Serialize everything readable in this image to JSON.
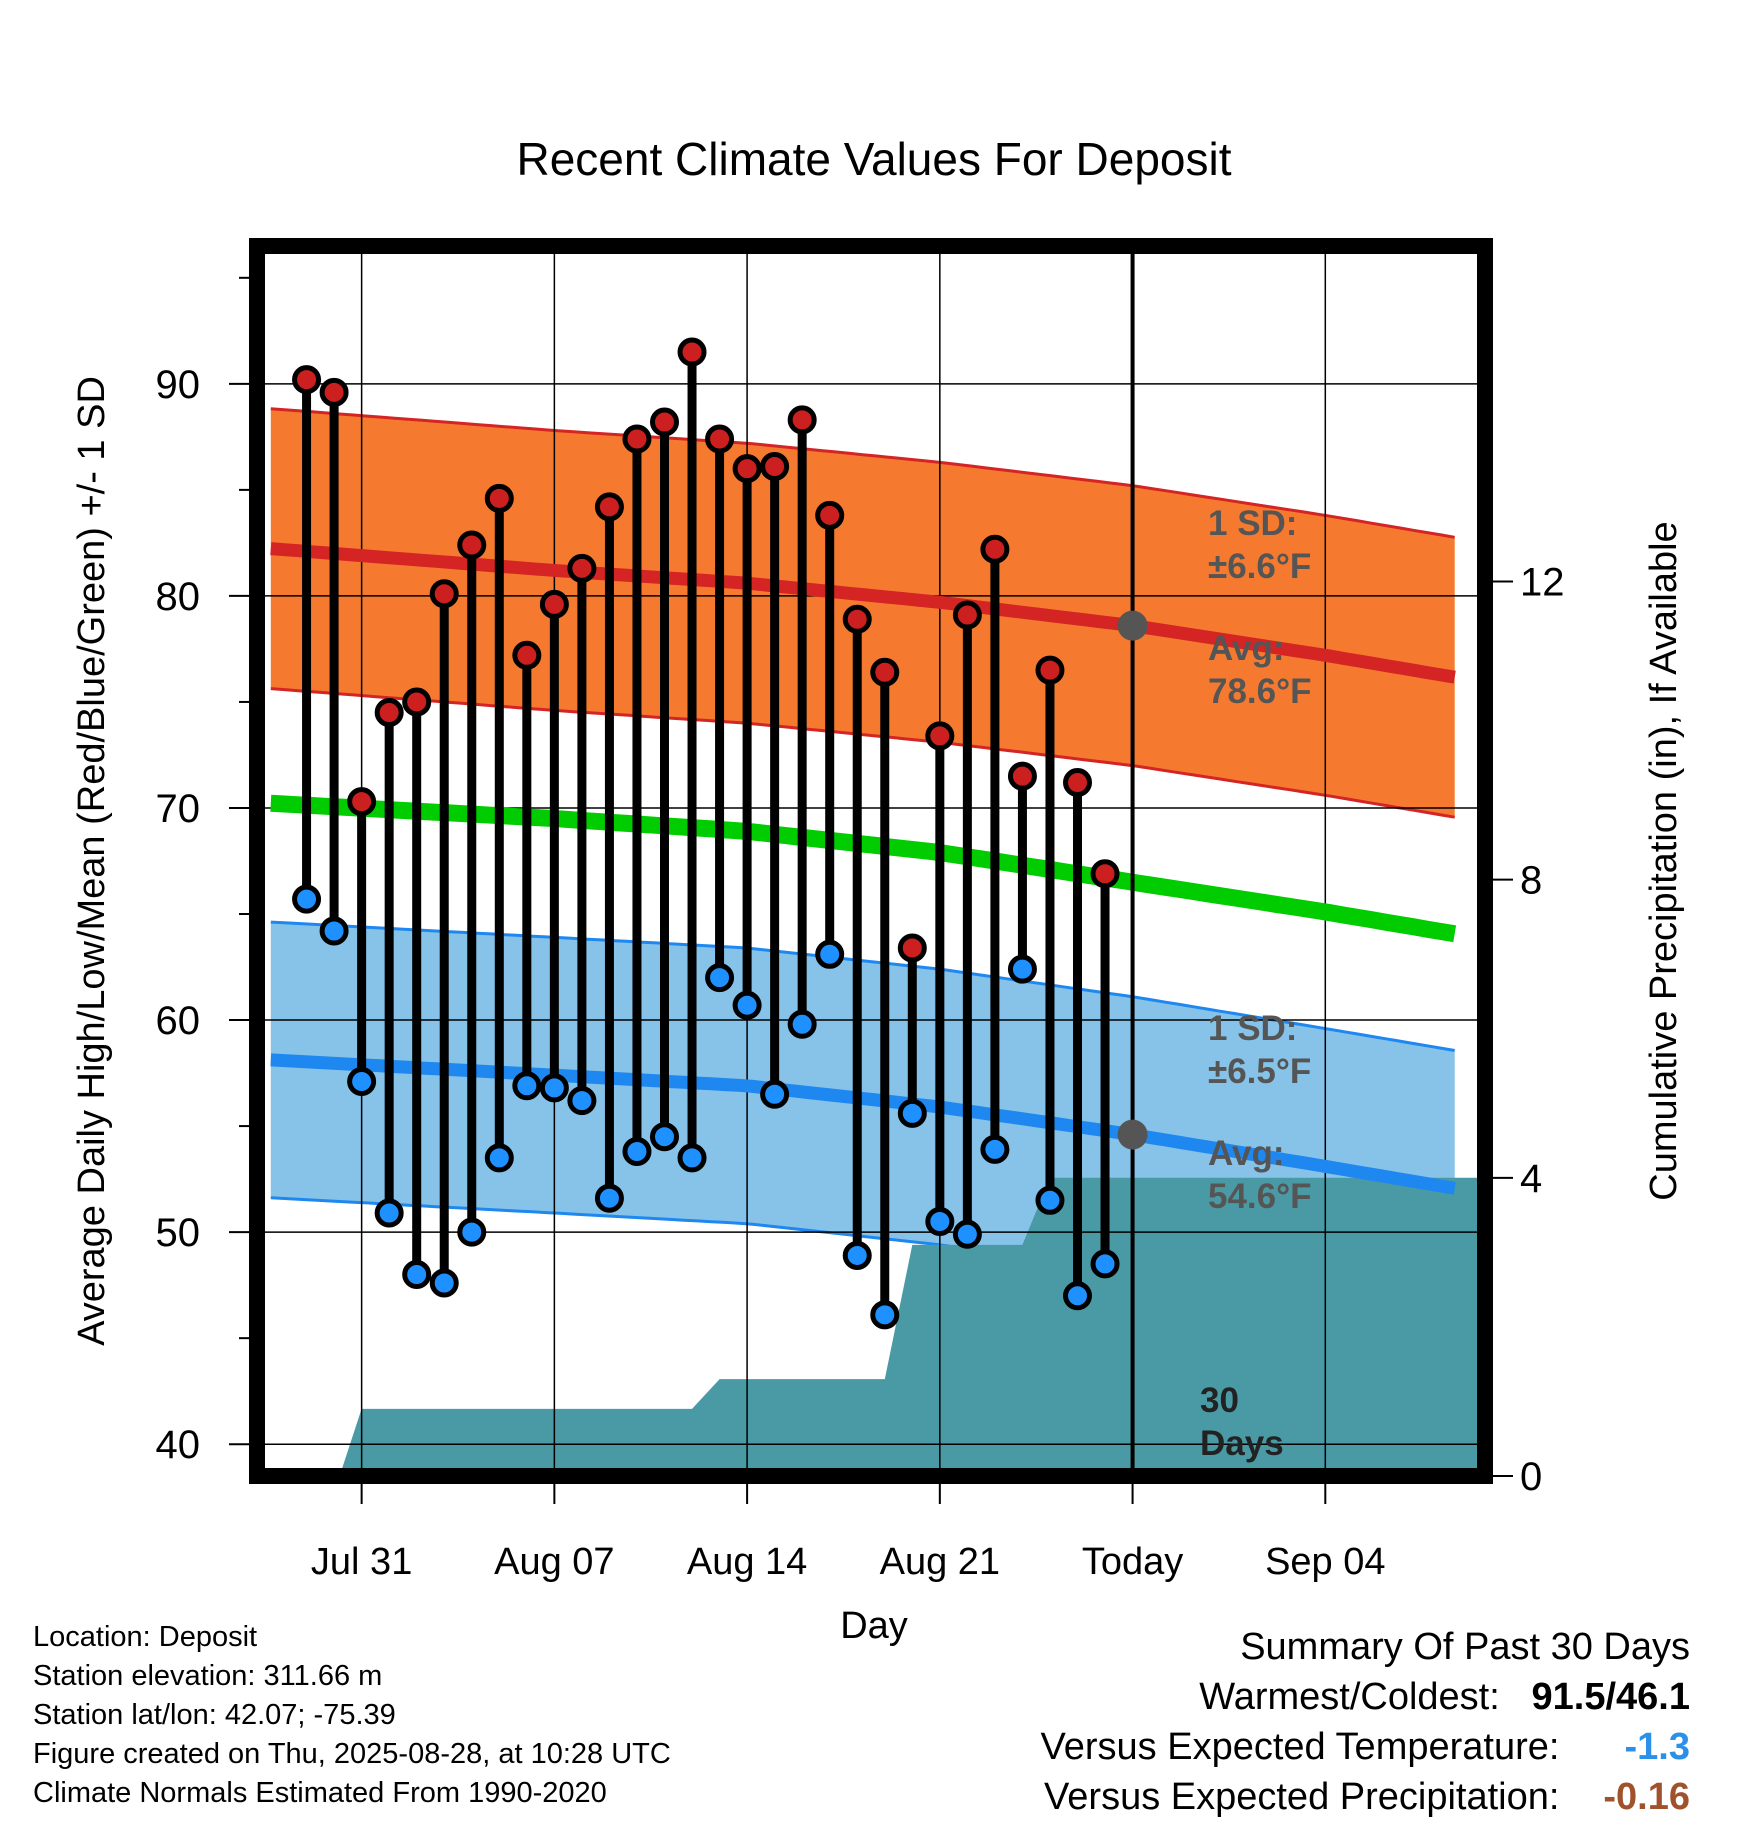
{
  "chart_data": {
    "type": "line",
    "title": "Recent Climate Values For Deposit",
    "xlabel": "Day",
    "ylabel": "Average Daily High/Low/Mean (Red/Blue/Green) +/- 1 SD",
    "y2label": "Cumulative Precipitation (in), If Available",
    "ylim": [
      38.5,
      96.5
    ],
    "y2lim": [
      0,
      16.5
    ],
    "xlim": [
      -3.8,
      40.8
    ],
    "yticks": [
      40,
      50,
      60,
      70,
      80,
      90
    ],
    "y2ticks": [
      0,
      4,
      8,
      12
    ],
    "xtick_labels": [
      {
        "x": 0,
        "label": "Jul 31"
      },
      {
        "x": 7,
        "label": "Aug 07"
      },
      {
        "x": 14,
        "label": "Aug 14"
      },
      {
        "x": 21,
        "label": "Aug 21"
      },
      {
        "x": 28,
        "label": "Today"
      },
      {
        "x": 35,
        "label": "Sep 04"
      }
    ],
    "today_x": 28,
    "days_x": [
      -2,
      -1,
      0,
      1,
      2,
      3,
      4,
      5,
      6,
      7,
      8,
      9,
      10,
      11,
      12,
      13,
      14,
      15,
      16,
      17,
      18,
      19,
      20,
      21,
      22,
      23,
      24,
      25,
      26,
      27
    ],
    "daily_high": [
      90.2,
      89.6,
      70.3,
      74.5,
      75.0,
      80.1,
      82.4,
      84.6,
      77.2,
      79.6,
      81.3,
      84.2,
      87.4,
      88.2,
      91.5,
      87.4,
      86.0,
      86.1,
      88.3,
      83.8,
      78.9,
      76.4,
      63.4,
      73.4,
      79.1,
      82.2,
      71.5,
      76.5,
      71.2,
      66.9
    ],
    "daily_low": [
      65.7,
      64.2,
      57.1,
      50.9,
      48.0,
      47.6,
      50.0,
      53.5,
      56.9,
      56.8,
      56.2,
      51.6,
      53.8,
      54.5,
      53.5,
      62.0,
      60.7,
      56.5,
      59.8,
      63.1,
      48.9,
      46.1,
      55.6,
      50.5,
      49.9,
      53.9,
      62.4,
      51.5,
      47.0,
      48.5
    ],
    "normal_x": [
      -3,
      7,
      14,
      21,
      28,
      35,
      40
    ],
    "normal_high": [
      82.2,
      81.2,
      80.6,
      79.7,
      78.6,
      77.2,
      76.1
    ],
    "normal_mean": [
      70.2,
      69.5,
      68.9,
      67.9,
      66.5,
      65.1,
      64.0
    ],
    "normal_low": [
      58.1,
      57.4,
      56.9,
      55.9,
      54.6,
      53.1,
      52.0
    ],
    "high_sd": 6.6,
    "low_sd": 6.5,
    "precip_x": [
      -0.8,
      0,
      12,
      13,
      19,
      20,
      24,
      25,
      28,
      40.8
    ],
    "precip_cum": [
      0,
      0.9,
      0.9,
      1.3,
      1.3,
      3.1,
      3.1,
      4.0,
      4.0,
      4.0
    ],
    "series": [
      {
        "name": "Daily High",
        "color": "#cc1f1f"
      },
      {
        "name": "Daily Low",
        "color": "#1e90ff"
      },
      {
        "name": "Normal Mean",
        "color": "#00cc00"
      },
      {
        "name": "Precipitation",
        "color": "#4a9aa5"
      }
    ],
    "grid": true
  },
  "annotations": {
    "high_sd_line1": "1 SD:",
    "high_sd_line2": "±6.6°F",
    "high_avg_line1": "Avg:",
    "high_avg_line2": "78.6°F",
    "low_sd_line1": "1 SD:",
    "low_sd_line2": "±6.5°F",
    "low_avg_line1": "Avg:",
    "low_avg_line2": "54.6°F",
    "days_line1": "30",
    "days_line2": "Days"
  },
  "colors": {
    "high_band": "#f57a30",
    "high_avg": "#d42424",
    "low_band": "#87c3e8",
    "low_avg": "#1e88f0",
    "mean": "#00cc00",
    "precip": "#4a9aa5",
    "annotation": "#555555",
    "versus_temp": "#2a90e8",
    "versus_precip": "#a0522d"
  },
  "footer": {
    "location": "Location: Deposit",
    "elevation": "Station elevation: 311.66 m",
    "latlon": "Station lat/lon: 42.07; -75.39",
    "created": "Figure created on Thu, 2025-08-28, at 10:28 UTC",
    "normals": "Climate Normals Estimated From 1990-2020"
  },
  "summary": {
    "title": "Summary Of Past 30 Days",
    "warmest_coldest_label": "Warmest/Coldest:",
    "warmest": "91.5",
    "slash": "/",
    "coldest": "46.1",
    "versus_temp_label": "Versus Expected Temperature:",
    "versus_temp_value": "-1.3",
    "versus_precip_label": "Versus Expected Precipitation:",
    "versus_precip_value": "-0.16"
  }
}
